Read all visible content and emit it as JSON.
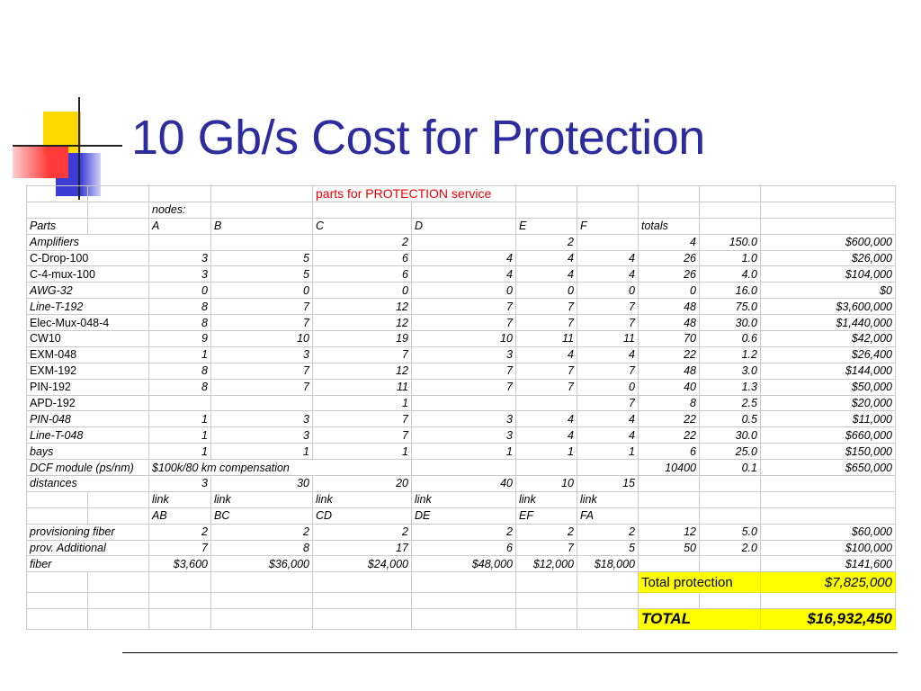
{
  "title": "10 Gb/s Cost for Protection",
  "colors": {
    "title": "#2c2c9e",
    "service_label": "#ee0000",
    "total_highlight": "#ffff00"
  },
  "sheet": {
    "service_label": "parts for PROTECTION service",
    "nodes_label": "nodes:",
    "header": {
      "parts": "Parts",
      "cols": [
        "A",
        "B",
        "C",
        "D",
        "E",
        "F"
      ],
      "totals": "totals"
    },
    "rows": [
      {
        "name": "Amplifiers",
        "vals": [
          "",
          "",
          "2",
          "",
          "2",
          ""
        ],
        "total": "4",
        "unit": "150.0",
        "cost": "$600,000",
        "upright": false
      },
      {
        "name": "C-Drop-100",
        "vals": [
          "3",
          "5",
          "6",
          "4",
          "4",
          "4"
        ],
        "total": "26",
        "unit": "1.0",
        "cost": "$26,000",
        "upright": true
      },
      {
        "name": "C-4-mux-100",
        "vals": [
          "3",
          "5",
          "6",
          "4",
          "4",
          "4"
        ],
        "total": "26",
        "unit": "4.0",
        "cost": "$104,000",
        "upright": true
      },
      {
        "name": "AWG-32",
        "vals": [
          "0",
          "0",
          "0",
          "0",
          "0",
          "0"
        ],
        "total": "0",
        "unit": "16.0",
        "cost": "$0",
        "upright": false
      },
      {
        "name": "Line-T-192",
        "vals": [
          "8",
          "7",
          "12",
          "7",
          "7",
          "7"
        ],
        "total": "48",
        "unit": "75.0",
        "cost": "$3,600,000",
        "upright": false
      },
      {
        "name": "Elec-Mux-048-4",
        "vals": [
          "8",
          "7",
          "12",
          "7",
          "7",
          "7"
        ],
        "total": "48",
        "unit": "30.0",
        "cost": "$1,440,000",
        "upright": true
      },
      {
        "name": "CW10",
        "vals": [
          "9",
          "10",
          "19",
          "10",
          "11",
          "11"
        ],
        "total": "70",
        "unit": "0.6",
        "cost": "$42,000",
        "upright": true
      },
      {
        "name": "EXM-048",
        "vals": [
          "1",
          "3",
          "7",
          "3",
          "4",
          "4"
        ],
        "total": "22",
        "unit": "1.2",
        "cost": "$26,400",
        "upright": true
      },
      {
        "name": "EXM-192",
        "vals": [
          "8",
          "7",
          "12",
          "7",
          "7",
          "7"
        ],
        "total": "48",
        "unit": "3.0",
        "cost": "$144,000",
        "upright": true
      },
      {
        "name": "PIN-192",
        "vals": [
          "8",
          "7",
          "11",
          "7",
          "7",
          "0"
        ],
        "total": "40",
        "unit": "1.3",
        "cost": "$50,000",
        "upright": true
      },
      {
        "name": "APD-192",
        "vals": [
          "",
          "",
          "1",
          "",
          "",
          "7"
        ],
        "total": "8",
        "unit": "2.5",
        "cost": "$20,000",
        "upright": true
      },
      {
        "name": "PIN-048",
        "vals": [
          "1",
          "3",
          "7",
          "3",
          "4",
          "4"
        ],
        "total": "22",
        "unit": "0.5",
        "cost": "$11,000",
        "upright": false
      },
      {
        "name": "Line-T-048",
        "vals": [
          "1",
          "3",
          "7",
          "3",
          "4",
          "4"
        ],
        "total": "22",
        "unit": "30.0",
        "cost": "$660,000",
        "upright": false
      },
      {
        "name": "bays",
        "vals": [
          "1",
          "1",
          "1",
          "1",
          "1",
          "1"
        ],
        "total": "6",
        "unit": "25.0",
        "cost": "$150,000",
        "upright": false
      }
    ],
    "dcf": {
      "name": "DCF module (ps/nm)",
      "note": "$100k/80 km compensation",
      "total": "10400",
      "unit": "0.1",
      "cost": "$650,000"
    },
    "distances": {
      "name": "distances",
      "vals": [
        "3",
        "30",
        "20",
        "40",
        "10",
        "15"
      ]
    },
    "link_label": "link",
    "links": [
      "AB",
      "BC",
      "CD",
      "DE",
      "EF",
      "FA"
    ],
    "prov_fiber": {
      "name": "provisioning fiber",
      "vals": [
        "2",
        "2",
        "2",
        "2",
        "2",
        "2"
      ],
      "total": "12",
      "unit": "5.0",
      "cost": "$60,000"
    },
    "prov_add": {
      "name": "prov. Additional",
      "vals": [
        "7",
        "8",
        "17",
        "6",
        "7",
        "5"
      ],
      "total": "50",
      "unit": "2.0",
      "cost": "$100,000"
    },
    "fiber": {
      "name": "fiber",
      "vals": [
        "$3,600",
        "$36,000",
        "$24,000",
        "$48,000",
        "$12,000",
        "$18,000"
      ],
      "cost": "$141,600"
    },
    "total_protection": {
      "label": "Total protection",
      "value": "$7,825,000"
    },
    "grand_total": {
      "label": "TOTAL",
      "value": "$16,932,450"
    }
  }
}
